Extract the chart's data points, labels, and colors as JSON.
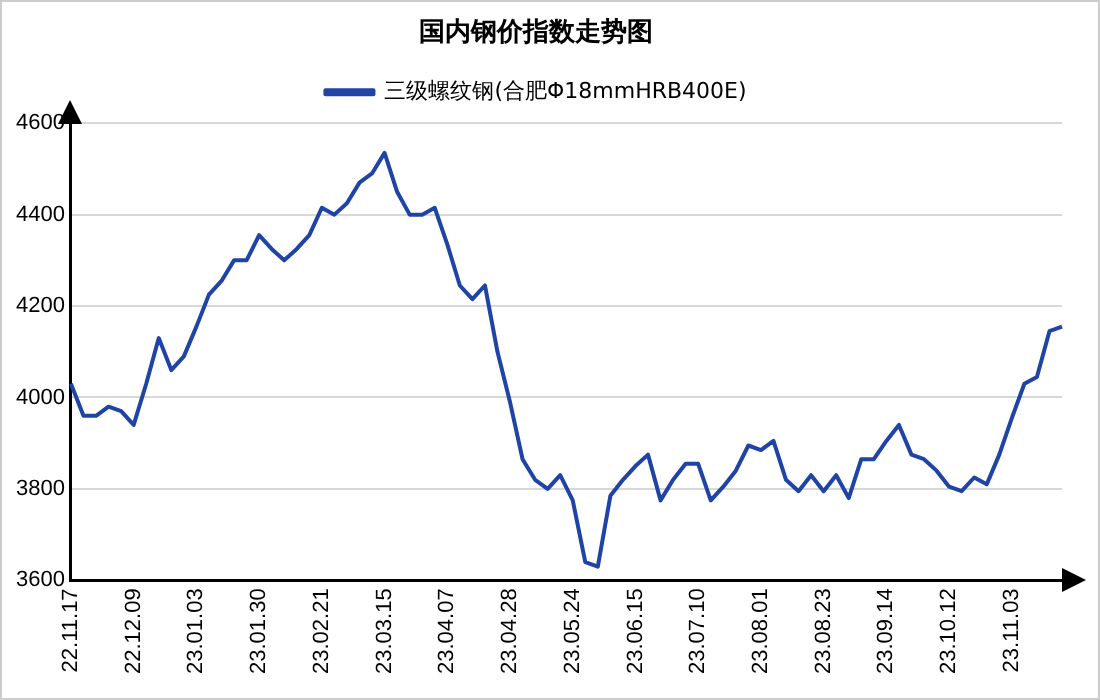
{
  "chart_data": {
    "type": "line",
    "title": "国内钢价指数走势图",
    "categories": [
      "22.11.17",
      null,
      null,
      null,
      null,
      "22.12.09",
      null,
      null,
      null,
      null,
      "23.01.03",
      null,
      null,
      null,
      null,
      "23.01.30",
      null,
      null,
      null,
      null,
      "23.02.21",
      null,
      null,
      null,
      null,
      "23.03.15",
      null,
      null,
      null,
      null,
      "23.04.07",
      null,
      null,
      null,
      null,
      "23.04.28",
      null,
      null,
      null,
      null,
      "23.05.24",
      null,
      null,
      null,
      null,
      "23.06.15",
      null,
      null,
      null,
      null,
      "23.07.10",
      null,
      null,
      null,
      null,
      "23.08.01",
      null,
      null,
      null,
      null,
      "23.08.23",
      null,
      null,
      null,
      null,
      "23.09.14",
      null,
      null,
      null,
      null,
      "23.10.12",
      null,
      null,
      null,
      null,
      "23.11.03",
      null,
      null,
      null,
      null
    ],
    "series": [
      {
        "name": "三级螺纹钢(合肥Φ18mmHRB400E)",
        "color": "#1f44a6",
        "values": [
          4030,
          3960,
          3960,
          3980,
          3970,
          3940,
          4030,
          4130,
          4060,
          4090,
          4155,
          4225,
          4255,
          4300,
          4300,
          4355,
          4325,
          4300,
          4325,
          4355,
          4415,
          4400,
          4425,
          4470,
          4490,
          4535,
          4450,
          4400,
          4400,
          4415,
          4335,
          4245,
          4215,
          4245,
          4100,
          3990,
          3865,
          3820,
          3800,
          3830,
          3775,
          3640,
          3630,
          3785,
          3820,
          3850,
          3875,
          3775,
          3820,
          3855,
          3855,
          3775,
          3805,
          3840,
          3895,
          3885,
          3905,
          3820,
          3795,
          3830,
          3795,
          3830,
          3780,
          3865,
          3865,
          3905,
          3940,
          3875,
          3865,
          3840,
          3805,
          3795,
          3825,
          3810,
          3875,
          3955,
          4030,
          4045,
          4145,
          4155
        ]
      }
    ],
    "ylim": [
      3600,
      4600
    ],
    "yticks": [
      3600,
      3800,
      4000,
      4200,
      4400,
      4600
    ],
    "grid": "y",
    "legend": "top",
    "marker": "none",
    "line_style": "solid"
  }
}
